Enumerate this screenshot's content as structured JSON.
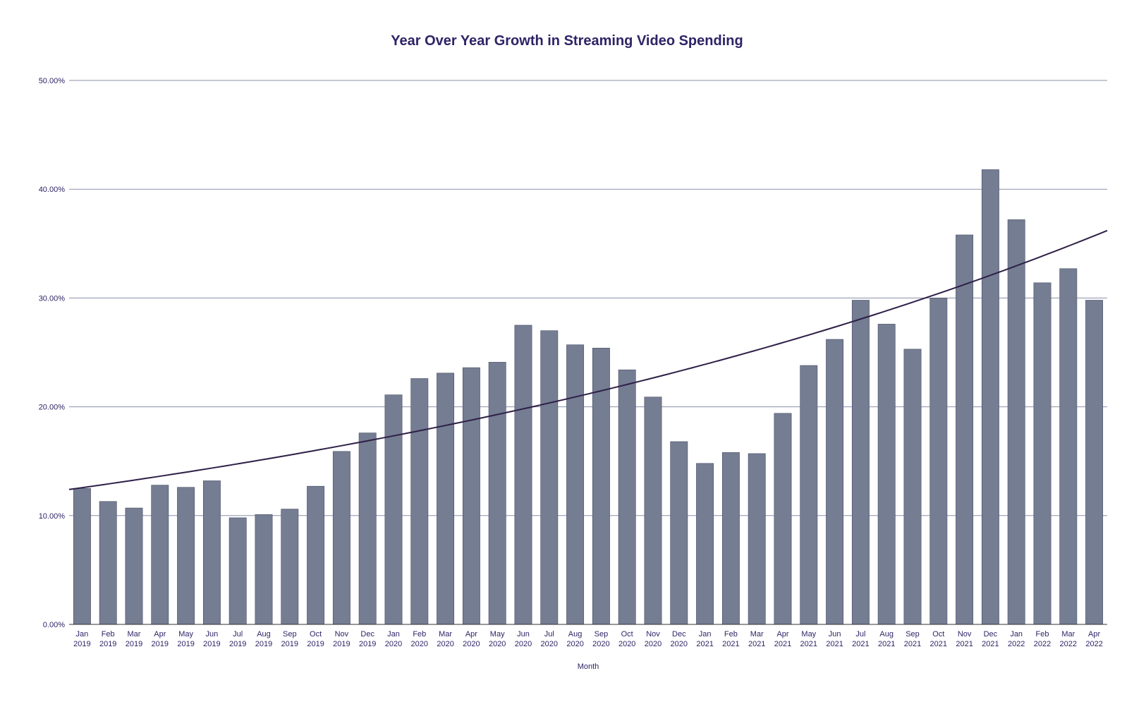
{
  "chart_data": {
    "type": "bar",
    "title": "Year Over Year Growth in Streaming Video Spending",
    "xlabel": "Month",
    "ylabel": "",
    "ylim": [
      0,
      50
    ],
    "y_ticks": [
      "0.00%",
      "10.00%",
      "20.00%",
      "30.00%",
      "40.00%",
      "50.00%"
    ],
    "grid": true,
    "bar_color": "#747d92",
    "trend_color": "#2e1f47",
    "text_color": "#2d2466",
    "categories": [
      [
        "Jan",
        "2019"
      ],
      [
        "Feb",
        "2019"
      ],
      [
        "Mar",
        "2019"
      ],
      [
        "Apr",
        "2019"
      ],
      [
        "May",
        "2019"
      ],
      [
        "Jun",
        "2019"
      ],
      [
        "Jul",
        "2019"
      ],
      [
        "Aug",
        "2019"
      ],
      [
        "Sep",
        "2019"
      ],
      [
        "Oct",
        "2019"
      ],
      [
        "Nov",
        "2019"
      ],
      [
        "Dec",
        "2019"
      ],
      [
        "Jan",
        "2020"
      ],
      [
        "Feb",
        "2020"
      ],
      [
        "Mar",
        "2020"
      ],
      [
        "Apr",
        "2020"
      ],
      [
        "May",
        "2020"
      ],
      [
        "Jun",
        "2020"
      ],
      [
        "Jul",
        "2020"
      ],
      [
        "Aug",
        "2020"
      ],
      [
        "Sep",
        "2020"
      ],
      [
        "Oct",
        "2020"
      ],
      [
        "Nov",
        "2020"
      ],
      [
        "Dec",
        "2020"
      ],
      [
        "Jan",
        "2021"
      ],
      [
        "Feb",
        "2021"
      ],
      [
        "Mar",
        "2021"
      ],
      [
        "Apr",
        "2021"
      ],
      [
        "May",
        "2021"
      ],
      [
        "Jun",
        "2021"
      ],
      [
        "Jul",
        "2021"
      ],
      [
        "Aug",
        "2021"
      ],
      [
        "Sep",
        "2021"
      ],
      [
        "Oct",
        "2021"
      ],
      [
        "Nov",
        "2021"
      ],
      [
        "Dec",
        "2021"
      ],
      [
        "Jan",
        "2022"
      ],
      [
        "Feb",
        "2022"
      ],
      [
        "Mar",
        "2022"
      ],
      [
        "Apr",
        "2022"
      ]
    ],
    "values": [
      12.5,
      11.3,
      10.7,
      12.8,
      12.6,
      13.2,
      9.8,
      10.1,
      10.6,
      12.7,
      15.9,
      17.6,
      21.1,
      22.6,
      23.1,
      23.6,
      24.1,
      27.5,
      27.0,
      25.7,
      25.4,
      23.4,
      20.9,
      16.8,
      14.8,
      15.8,
      15.7,
      19.4,
      23.8,
      26.2,
      29.8,
      27.6,
      25.3,
      30.0,
      35.8,
      41.8,
      37.2,
      31.4,
      32.7,
      29.8
    ],
    "trendline": {
      "type": "exponential",
      "start_value": 12.4,
      "end_value": 36.2
    }
  }
}
